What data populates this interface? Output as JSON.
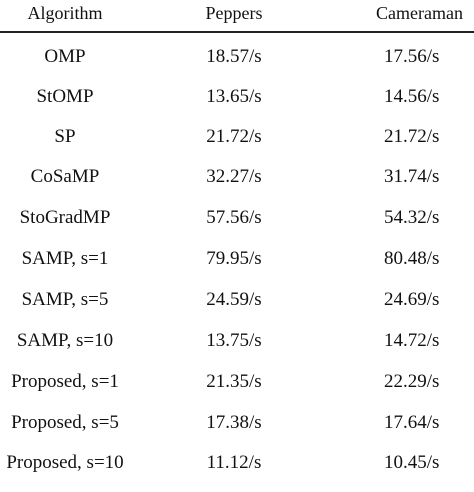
{
  "table": {
    "headers": {
      "algorithm": "Algorithm",
      "peppers": "Peppers",
      "cameraman": "Cameraman"
    },
    "rows": [
      {
        "algorithm": "OMP",
        "peppers": "18.57/s",
        "cameraman": "17.56/s"
      },
      {
        "algorithm": "StOMP",
        "peppers": "13.65/s",
        "cameraman": "14.56/s"
      },
      {
        "algorithm": "SP",
        "peppers": "21.72/s",
        "cameraman": "21.72/s"
      },
      {
        "algorithm": "CoSaMP",
        "peppers": "32.27/s",
        "cameraman": "31.74/s"
      },
      {
        "algorithm": "StoGradMP",
        "peppers": "57.56/s",
        "cameraman": "54.32/s"
      },
      {
        "algorithm": "SAMP, s=1",
        "peppers": "79.95/s",
        "cameraman": "80.48/s"
      },
      {
        "algorithm": "SAMP, s=5",
        "peppers": "24.59/s",
        "cameraman": "24.69/s"
      },
      {
        "algorithm": "SAMP, s=10",
        "peppers": "13.75/s",
        "cameraman": "14.72/s"
      },
      {
        "algorithm": "Proposed, s=1",
        "peppers": "21.35/s",
        "cameraman": "22.29/s"
      },
      {
        "algorithm": "Proposed, s=5",
        "peppers": "17.38/s",
        "cameraman": "17.64/s"
      },
      {
        "algorithm": "Proposed, s=10",
        "peppers": "11.12/s",
        "cameraman": "10.45/s"
      }
    ]
  }
}
